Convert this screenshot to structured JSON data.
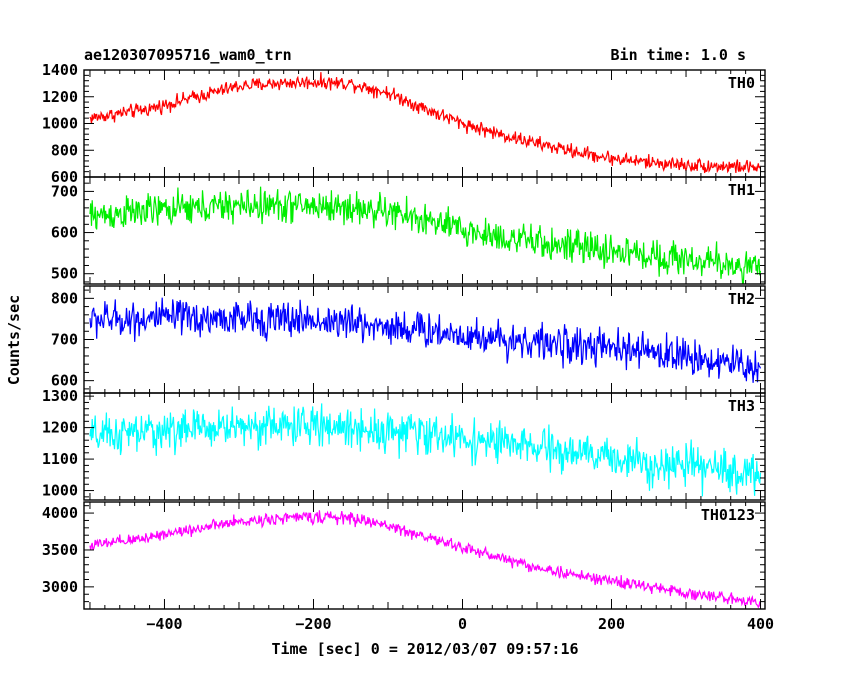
{
  "chart_data": {
    "type": "line",
    "title": "ae120307095716_wam0_trn",
    "bin_time_label": "Bin time: 1.0 s",
    "xlabel": "Time [sec] 0 = 2012/03/07 09:57:16",
    "ylabel": "Counts/sec",
    "xlim": [
      -508,
      406
    ],
    "xticks": [
      -400,
      -200,
      0,
      200,
      400
    ],
    "grid": false,
    "panels": [
      {
        "name": "TH0",
        "color": "#ff0000",
        "ylim": [
          600,
          1400
        ],
        "yticks": [
          600,
          800,
          1000,
          1200,
          1400
        ],
        "knots": [
          [
            -500,
            1040
          ],
          [
            -420,
            1110
          ],
          [
            -350,
            1210
          ],
          [
            -300,
            1280
          ],
          [
            -250,
            1300
          ],
          [
            -200,
            1310
          ],
          [
            -150,
            1300
          ],
          [
            -100,
            1230
          ],
          [
            -50,
            1110
          ],
          [
            0,
            1000
          ],
          [
            50,
            920
          ],
          [
            100,
            850
          ],
          [
            150,
            790
          ],
          [
            200,
            740
          ],
          [
            250,
            710
          ],
          [
            300,
            690
          ],
          [
            350,
            680
          ],
          [
            400,
            670
          ]
        ],
        "noise": 45
      },
      {
        "name": "TH1",
        "color": "#00ee00",
        "ylim": [
          475,
          735
        ],
        "yticks": [
          500,
          600,
          700
        ],
        "knots": [
          [
            -500,
            640
          ],
          [
            -400,
            655
          ],
          [
            -300,
            665
          ],
          [
            -200,
            665
          ],
          [
            -150,
            660
          ],
          [
            -100,
            650
          ],
          [
            -50,
            630
          ],
          [
            0,
            605
          ],
          [
            50,
            590
          ],
          [
            100,
            575
          ],
          [
            150,
            565
          ],
          [
            200,
            555
          ],
          [
            250,
            545
          ],
          [
            300,
            535
          ],
          [
            350,
            525
          ],
          [
            400,
            512
          ]
        ],
        "noise": 35
      },
      {
        "name": "TH2",
        "color": "#0000ff",
        "ylim": [
          570,
          830
        ],
        "yticks": [
          600,
          700,
          800
        ],
        "knots": [
          [
            -500,
            748
          ],
          [
            -400,
            752
          ],
          [
            -300,
            750
          ],
          [
            -200,
            747
          ],
          [
            -150,
            740
          ],
          [
            -100,
            732
          ],
          [
            -50,
            722
          ],
          [
            0,
            712
          ],
          [
            50,
            702
          ],
          [
            100,
            693
          ],
          [
            150,
            685
          ],
          [
            200,
            677
          ],
          [
            250,
            670
          ],
          [
            300,
            660
          ],
          [
            350,
            645
          ],
          [
            400,
            630
          ]
        ],
        "noise": 38
      },
      {
        "name": "TH3",
        "color": "#00ffff",
        "ylim": [
          970,
          1310
        ],
        "yticks": [
          1000,
          1100,
          1200,
          1300
        ],
        "knots": [
          [
            -500,
            1170
          ],
          [
            -400,
            1190
          ],
          [
            -300,
            1205
          ],
          [
            -200,
            1205
          ],
          [
            -150,
            1200
          ],
          [
            -100,
            1190
          ],
          [
            -50,
            1180
          ],
          [
            0,
            1165
          ],
          [
            50,
            1150
          ],
          [
            100,
            1135
          ],
          [
            150,
            1118
          ],
          [
            200,
            1105
          ],
          [
            250,
            1090
          ],
          [
            300,
            1075
          ],
          [
            350,
            1065
          ],
          [
            400,
            1050
          ]
        ],
        "noise": 55
      },
      {
        "name": "TH0123",
        "color": "#ff00ff",
        "ylim": [
          2700,
          4150
        ],
        "yticks": [
          3000,
          3500,
          4000
        ],
        "knots": [
          [
            -500,
            3560
          ],
          [
            -450,
            3620
          ],
          [
            -400,
            3720
          ],
          [
            -350,
            3800
          ],
          [
            -300,
            3880
          ],
          [
            -250,
            3930
          ],
          [
            -200,
            3950
          ],
          [
            -150,
            3930
          ],
          [
            -100,
            3830
          ],
          [
            -50,
            3680
          ],
          [
            0,
            3530
          ],
          [
            50,
            3400
          ],
          [
            100,
            3260
          ],
          [
            150,
            3160
          ],
          [
            200,
            3080
          ],
          [
            250,
            3000
          ],
          [
            300,
            2920
          ],
          [
            350,
            2850
          ],
          [
            400,
            2800
          ]
        ],
        "noise": 70
      }
    ]
  }
}
